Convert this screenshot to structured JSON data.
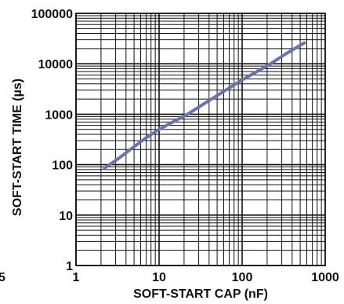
{
  "chart_data": {
    "type": "line",
    "x_scale": "log",
    "y_scale": "log",
    "xlim": [
      1,
      1000
    ],
    "ylim": [
      1,
      100000
    ],
    "xlabel": "SOFT-START CAP (nF)",
    "ylabel": "SOFT-START TIME (µs)",
    "x_tick_labels": [
      "1",
      "10",
      "100",
      "1000"
    ],
    "y_tick_labels": [
      "1",
      "10",
      "100",
      "1000",
      "10000",
      "100000"
    ],
    "x_tick_values": [
      1,
      10,
      100,
      1000
    ],
    "y_tick_values": [
      1,
      10,
      100,
      1000,
      10000,
      100000
    ],
    "grid": true,
    "stray_label": "5",
    "series": [
      {
        "color": "#6b73a8",
        "x": [
          2.2,
          3.3,
          4.7,
          6.8,
          10,
          22,
          47,
          100,
          220,
          330,
          560
        ],
        "y": [
          85,
          135,
          210,
          330,
          500,
          1000,
          2200,
          4800,
          10000,
          15500,
          26000
        ]
      }
    ]
  }
}
